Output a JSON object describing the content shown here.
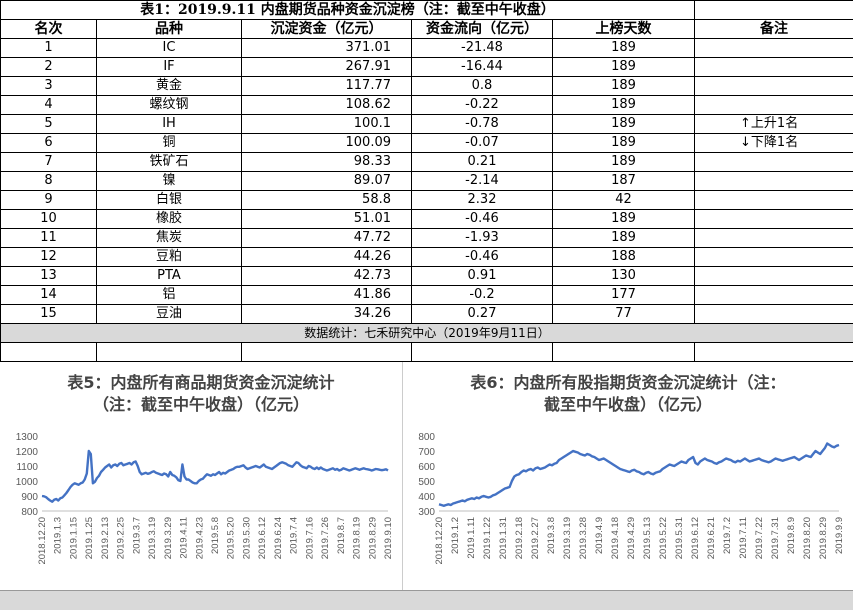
{
  "table": {
    "title": "表1：2019.9.11 内盘期货品种资金沉淀榜（注：截至中午收盘）",
    "headers": [
      "名次",
      "品种",
      "沉淀资金（亿元）",
      "资金流向（亿元）",
      "上榜天数",
      "备注"
    ],
    "rows": [
      {
        "rank": "1",
        "name": "IC",
        "fund": "371.01",
        "flow": "-21.48",
        "days": "189"
      },
      {
        "rank": "2",
        "name": "IF",
        "fund": "267.91",
        "flow": "-16.44",
        "days": "189"
      },
      {
        "rank": "3",
        "name": "黄金",
        "fund": "117.77",
        "flow": "0.8",
        "days": "189"
      },
      {
        "rank": "4",
        "name": "螺纹钢",
        "fund": "108.62",
        "flow": "-0.22",
        "days": "189"
      },
      {
        "rank": "5",
        "name": "IH",
        "fund": "100.1",
        "flow": "-0.78",
        "days": "189"
      },
      {
        "rank": "6",
        "name": "铜",
        "fund": "100.09",
        "flow": "-0.07",
        "days": "189"
      },
      {
        "rank": "7",
        "name": "铁矿石",
        "fund": "98.33",
        "flow": "0.21",
        "days": "189"
      },
      {
        "rank": "8",
        "name": "镍",
        "fund": "89.07",
        "flow": "-2.14",
        "days": "187"
      },
      {
        "rank": "9",
        "name": "白银",
        "fund": "58.8",
        "flow": "2.32",
        "days": "42"
      },
      {
        "rank": "10",
        "name": "橡胶",
        "fund": "51.01",
        "flow": "-0.46",
        "days": "189"
      },
      {
        "rank": "11",
        "name": "焦炭",
        "fund": "47.72",
        "flow": "-1.93",
        "days": "189"
      },
      {
        "rank": "12",
        "name": "豆粕",
        "fund": "44.26",
        "flow": "-0.46",
        "days": "188"
      },
      {
        "rank": "13",
        "name": "PTA",
        "fund": "42.73",
        "flow": "0.91",
        "days": "130"
      },
      {
        "rank": "14",
        "name": "铝",
        "fund": "41.86",
        "flow": "-0.2",
        "days": "177"
      },
      {
        "rank": "15",
        "name": "豆油",
        "fund": "34.26",
        "flow": "0.27",
        "days": "77"
      }
    ],
    "note_up": "上升1名",
    "note_down": "下降1名",
    "source": "数据统计：七禾研究中心（2019年9月11日）",
    "colors": {
      "grid": "#000000",
      "gray_band": "#d9d9d9"
    }
  },
  "chart_data": [
    {
      "type": "line",
      "title": "表5：内盘所有商品期货资金沉淀统计（注：截至中午收盘）（亿元）",
      "title_lines": [
        "表5：内盘所有商品期货资金沉淀统计",
        "（注：截至中午收盘）（亿元）"
      ],
      "ylim": [
        800,
        1300
      ],
      "yticks": [
        800,
        900,
        1000,
        1100,
        1200,
        1300
      ],
      "xticklabels": [
        "2018.12.20",
        "2019.1.3",
        "2019.1.15",
        "2019.1.25",
        "2019.2.13",
        "2019.2.25",
        "2019.3.7",
        "2019.3.19",
        "2019.3.29",
        "2019.4.11",
        "2019.4.23",
        "2019.5.8",
        "2019.5.20",
        "2019.5.30",
        "2019.6.12",
        "2019.6.24",
        "2019.7.4",
        "2019.7.16",
        "2019.7.26",
        "2019.8.7",
        "2019.8.19",
        "2019.8.29",
        "2019.9.10"
      ],
      "values": [
        900,
        898,
        892,
        880,
        870,
        862,
        875,
        880,
        870,
        885,
        890,
        905,
        920,
        940,
        960,
        975,
        985,
        980,
        975,
        985,
        990,
        1010,
        1050,
        1200,
        1180,
        985,
        995,
        1020,
        1035,
        1060,
        1075,
        1090,
        1100,
        1110,
        1090,
        1105,
        1110,
        1100,
        1115,
        1120,
        1105,
        1110,
        1115,
        1120,
        1110,
        1125,
        1130,
        1100,
        1060,
        1045,
        1050,
        1055,
        1048,
        1052,
        1060,
        1065,
        1055,
        1050,
        1045,
        1040,
        1050,
        1045,
        1030,
        1060,
        1040,
        1035,
        1025,
        1005,
        1000,
        1110,
        1030,
        1010,
        1010,
        1000,
        990,
        985,
        985,
        1000,
        1010,
        1015,
        1030,
        1045,
        1040,
        1035,
        1045,
        1040,
        1050,
        1060,
        1045,
        1055,
        1050,
        1060,
        1070,
        1075,
        1080,
        1090,
        1095,
        1095,
        1100,
        1105,
        1090,
        1080,
        1085,
        1090,
        1095,
        1100,
        1095,
        1090,
        1100,
        1110,
        1095,
        1090,
        1085,
        1080,
        1090,
        1100,
        1110,
        1120,
        1125,
        1120,
        1115,
        1105,
        1100,
        1095,
        1110,
        1125,
        1120,
        1105,
        1095,
        1090,
        1085,
        1100,
        1095,
        1085,
        1080,
        1090,
        1080,
        1090,
        1080,
        1075,
        1070,
        1075,
        1080,
        1085,
        1075,
        1080,
        1070,
        1075,
        1085,
        1080,
        1075,
        1070,
        1075,
        1080,
        1085,
        1080,
        1075,
        1080,
        1085,
        1080,
        1078,
        1075,
        1070,
        1075,
        1080,
        1078,
        1075,
        1072,
        1075,
        1078,
        1070
      ],
      "color": "#4472c4",
      "grid": false
    },
    {
      "type": "line",
      "title": "表6：内盘所有股指期货资金沉淀统计（注：截至中午收盘）（亿元）",
      "title_lines": [
        "表6：内盘所有股指期货资金沉淀统计（注：",
        "截至中午收盘）（亿元）"
      ],
      "ylim": [
        300,
        800
      ],
      "yticks": [
        300,
        400,
        500,
        600,
        700,
        800
      ],
      "xticklabels": [
        "2018.12.20",
        "2019.1.2",
        "2019.1.11",
        "2019.1.22",
        "2019.1.31",
        "2019.2.18",
        "2019.2.27",
        "2019.3.8",
        "2019.3.19",
        "2019.3.28",
        "2019.4.9",
        "2019.4.18",
        "2019.4.29",
        "2019.5.13",
        "2019.5.22",
        "2019.5.31",
        "2019.6.12",
        "2019.6.21",
        "2019.7.2",
        "2019.7.11",
        "2019.7.22",
        "2019.7.31",
        "2019.8.9",
        "2019.8.20",
        "2019.8.29",
        "2019.9.9"
      ],
      "values": [
        345,
        340,
        335,
        340,
        345,
        340,
        350,
        355,
        360,
        365,
        370,
        365,
        375,
        380,
        385,
        380,
        390,
        385,
        395,
        400,
        395,
        390,
        395,
        405,
        410,
        420,
        430,
        440,
        450,
        455,
        460,
        500,
        530,
        540,
        545,
        560,
        570,
        565,
        575,
        580,
        570,
        585,
        590,
        580,
        585,
        590,
        600,
        610,
        605,
        615,
        620,
        640,
        650,
        660,
        670,
        680,
        690,
        700,
        695,
        690,
        680,
        675,
        670,
        680,
        675,
        665,
        660,
        650,
        640,
        645,
        650,
        640,
        630,
        620,
        610,
        600,
        590,
        580,
        575,
        570,
        565,
        560,
        570,
        575,
        565,
        560,
        550,
        545,
        555,
        560,
        550,
        545,
        555,
        560,
        565,
        580,
        590,
        600,
        610,
        605,
        600,
        610,
        620,
        630,
        625,
        620,
        640,
        650,
        660,
        620,
        610,
        630,
        640,
        650,
        640,
        635,
        630,
        620,
        615,
        625,
        630,
        640,
        650,
        645,
        640,
        630,
        625,
        635,
        630,
        640,
        650,
        640,
        630,
        635,
        640,
        645,
        650,
        640,
        635,
        630,
        625,
        630,
        640,
        650,
        645,
        640,
        635,
        640,
        645,
        650,
        655,
        660,
        650,
        640,
        650,
        660,
        670,
        665,
        660,
        680,
        700,
        690,
        680,
        700,
        720,
        750,
        740,
        730,
        725,
        735,
        740
      ],
      "color": "#4472c4",
      "grid": false
    }
  ]
}
